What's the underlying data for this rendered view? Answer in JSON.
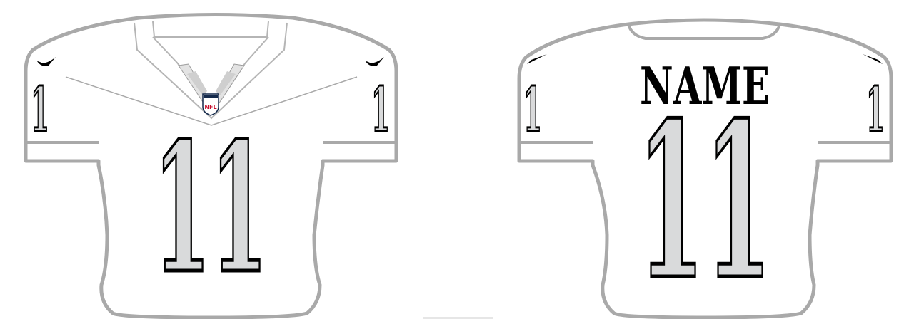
{
  "front": {
    "chest_number": "11",
    "sleeve_number_left": "1",
    "sleeve_number_right": "1",
    "shield_text": "NFL",
    "swoosh_left_icon": "swoosh-icon",
    "swoosh_right_icon": "swoosh-icon",
    "shield_icon": "nfl-shield-icon"
  },
  "back": {
    "name": "NAME",
    "back_number": "11",
    "sleeve_number_left": "1",
    "sleeve_number_right": "1"
  },
  "colors": {
    "jersey_fill": "#ffffff",
    "jersey_outline": "#a9a9a9",
    "number_fill": "#d9dadb",
    "number_outline": "#000000",
    "name_color": "#000000",
    "shield_red": "#c8102e",
    "shield_blue": "#13294b"
  }
}
